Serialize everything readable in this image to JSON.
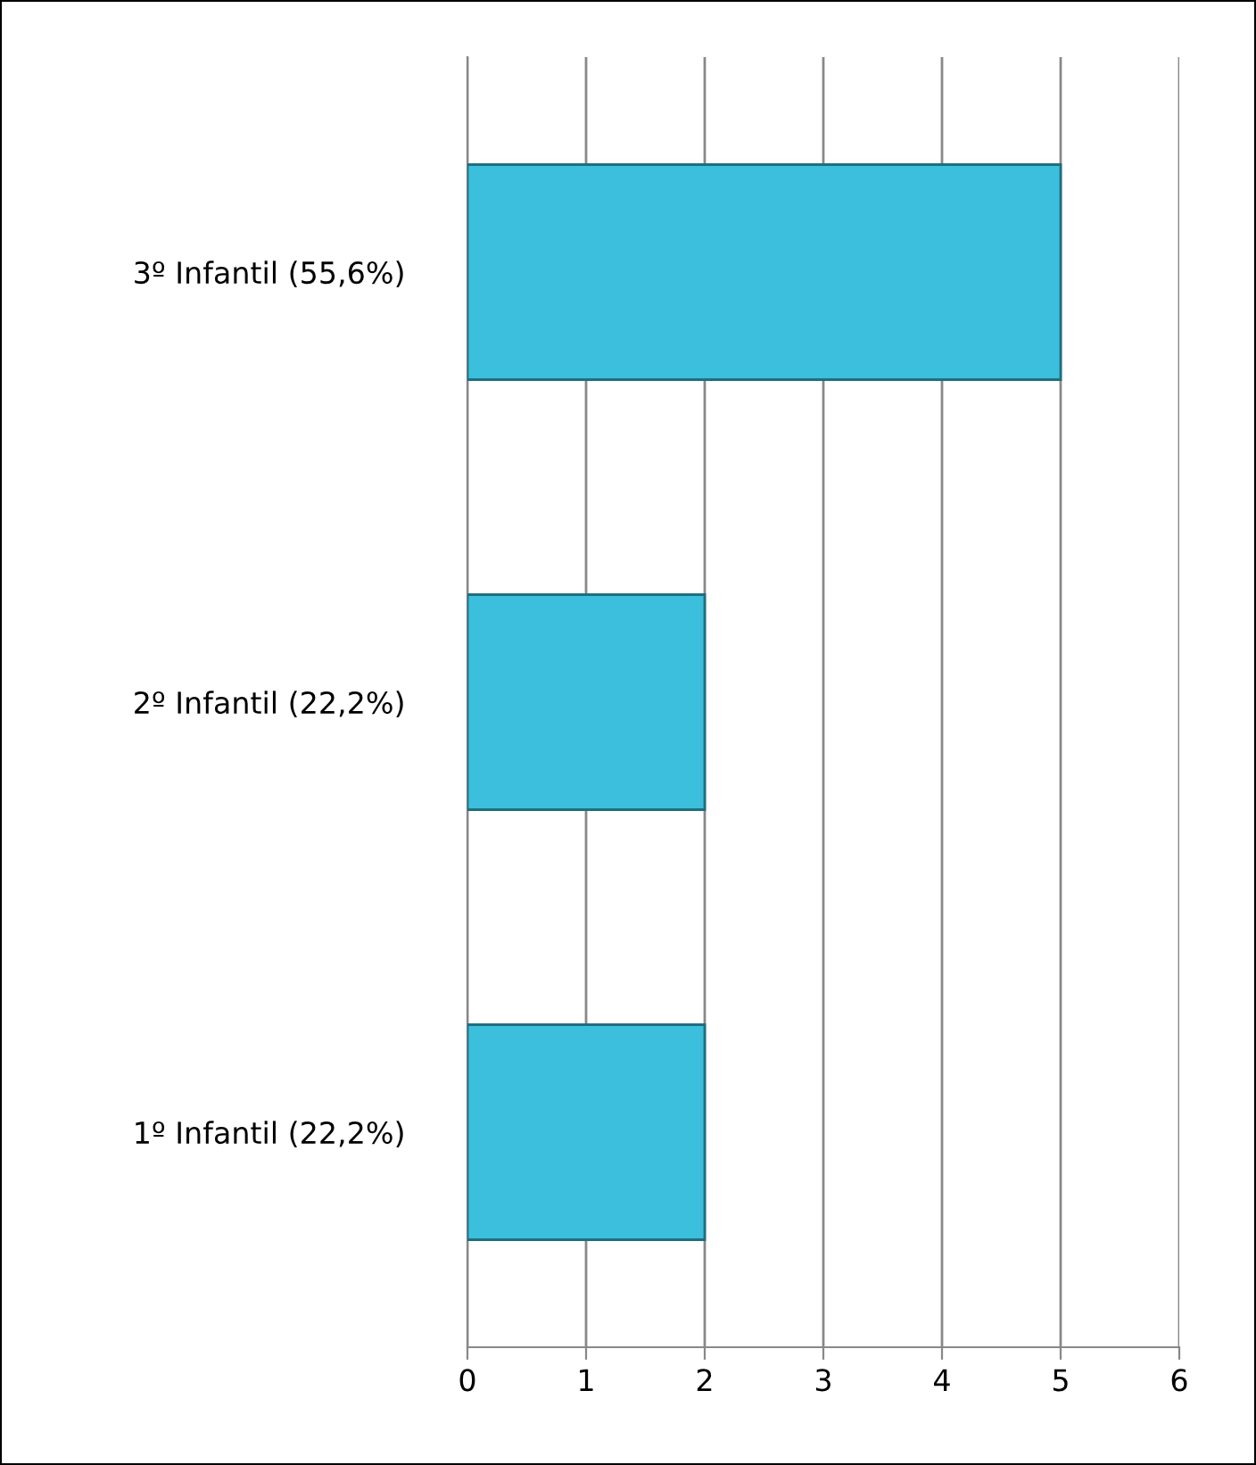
{
  "chart_data": {
    "type": "bar",
    "orientation": "horizontal",
    "categories": [
      "3º Infantil (55,6%)",
      "2º Infantil (22,2%)",
      "1º Infantil (22,2%)"
    ],
    "values": [
      5,
      2,
      2
    ],
    "color": "#3cbfdc",
    "xlim": [
      0,
      6
    ],
    "xticks": [
      0,
      1,
      2,
      3,
      4,
      5,
      6
    ],
    "grid": "x"
  }
}
